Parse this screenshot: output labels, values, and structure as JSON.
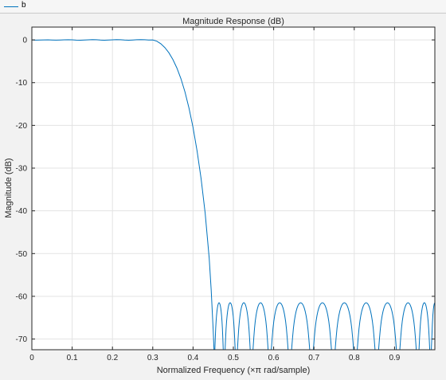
{
  "legend": {
    "entries": [
      {
        "label": "b",
        "color": "#0072bd"
      }
    ]
  },
  "chart_data": {
    "type": "line",
    "title": "Magnitude Response (dB)",
    "xlabel": "Normalized Frequency (×π rad/sample)",
    "ylabel": "Magnitude (dB)",
    "xlim": [
      0,
      1
    ],
    "ylim": [
      -72.5,
      3
    ],
    "xticks": [
      0,
      0.1,
      0.2,
      0.3,
      0.4,
      0.5,
      0.6,
      0.7,
      0.8,
      0.9
    ],
    "xtick_labels": [
      "0",
      "0.1",
      "0.2",
      "0.3",
      "0.4",
      "0.5",
      "0.6",
      "0.7",
      "0.8",
      "0.9"
    ],
    "yticks": [
      0,
      -10,
      -20,
      -30,
      -40,
      -50,
      -60,
      -70
    ],
    "ytick_labels": [
      "0",
      "-10",
      "-20",
      "-30",
      "-40",
      "-50",
      "-60",
      "-70"
    ],
    "grid": true,
    "legend_position": "top-left",
    "colors": {
      "line": "#0072bd",
      "grid": "#e3e3e3",
      "axes_bg": "#ffffff"
    },
    "series": [
      {
        "name": "b",
        "passband": {
          "x": [
            0,
            0.01,
            0.02,
            0.03,
            0.04,
            0.05,
            0.06,
            0.07,
            0.08,
            0.09,
            0.1,
            0.11,
            0.12,
            0.13,
            0.14,
            0.15,
            0.16,
            0.17,
            0.18,
            0.19,
            0.2,
            0.21,
            0.22,
            0.23,
            0.24,
            0.25,
            0.26,
            0.27,
            0.28,
            0.29,
            0.3
          ],
          "y": [
            0,
            -0.05,
            -0.02,
            0.0,
            0.02,
            -0.03,
            -0.06,
            -0.03,
            0.02,
            0.05,
            0.02,
            -0.05,
            -0.08,
            -0.04,
            0.02,
            0.06,
            0.03,
            -0.04,
            -0.07,
            -0.03,
            0.02,
            0.06,
            0.03,
            -0.04,
            -0.07,
            -0.03,
            0.03,
            0.07,
            0.04,
            -0.04,
            0.0
          ]
        },
        "transition": {
          "x": [
            0.3,
            0.31,
            0.32,
            0.33,
            0.34,
            0.35,
            0.36,
            0.37,
            0.38,
            0.39,
            0.4,
            0.41,
            0.42,
            0.43,
            0.44,
            0.445,
            0.45,
            0.452
          ],
          "y": [
            0.0,
            -0.3,
            -0.9,
            -1.8,
            -3.0,
            -4.6,
            -6.6,
            -9.1,
            -12.2,
            -16.0,
            -20.5,
            -26.0,
            -32.5,
            -40.5,
            -51.0,
            -58.5,
            -68.0,
            -72.5
          ]
        },
        "stopband_nulls": [
          0.452,
          0.477,
          0.507,
          0.545,
          0.59,
          0.64,
          0.694,
          0.748,
          0.803,
          0.856,
          0.909,
          0.958,
          0.99
        ],
        "stopband_peak_db": -61.5
      }
    ]
  }
}
